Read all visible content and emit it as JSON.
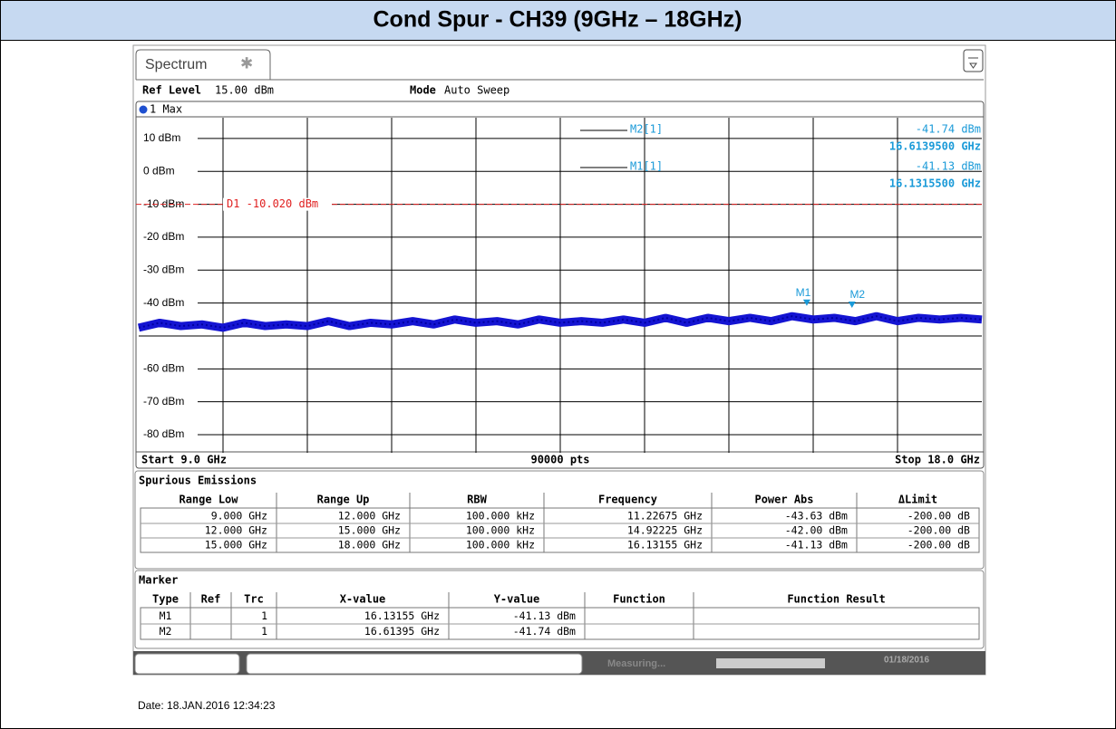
{
  "header": {
    "title": "Cond Spur  - CH39 (9GHz – 18GHz)"
  },
  "tab": "Spectrum",
  "settings": {
    "ref_level_label": "Ref Level",
    "ref_level": "15.00 dBm",
    "mode_label": "Mode",
    "mode": "Auto Sweep",
    "trace_label": "1 Max"
  },
  "chart_data": {
    "type": "line",
    "xlim": [
      9,
      18
    ],
    "x_divisions": 10,
    "ylim": [
      -85.5,
      16.3
    ],
    "yticks": [
      {
        "value": 10,
        "label": "10 dBm"
      },
      {
        "value": 0,
        "label": "0 dBm"
      },
      {
        "value": -10,
        "label": "-10 dBm"
      },
      {
        "value": -20,
        "label": "-20 dBm"
      },
      {
        "value": -30,
        "label": "-30 dBm"
      },
      {
        "value": -40,
        "label": "-40 dBm"
      },
      {
        "value": -50,
        "label": null
      },
      {
        "value": -60,
        "label": "-60 dBm"
      },
      {
        "value": -70,
        "label": "-70 dBm"
      },
      {
        "value": -80,
        "label": "-80 dBm"
      }
    ],
    "grid": true,
    "x": [
      9,
      9.225,
      9.45,
      9.675,
      9.9,
      10.125,
      10.35,
      10.575,
      10.8,
      11.025,
      11.25,
      11.475,
      11.7,
      11.925,
      12.15,
      12.375,
      12.6,
      12.825,
      13.05,
      13.275,
      13.5,
      13.725,
      13.95,
      14.175,
      14.4,
      14.625,
      14.85,
      15.075,
      15.3,
      15.525,
      15.75,
      15.975,
      16.2,
      16.425,
      16.65,
      16.875,
      17.1,
      17.325,
      17.55,
      17.775,
      18
    ],
    "series": [
      {
        "name": "1 Max",
        "color": "#1414d2",
        "values": [
          -47.5,
          -46,
          -47,
          -46.5,
          -47.5,
          -46,
          -47,
          -46.5,
          -47,
          -45.5,
          -47,
          -46,
          -46.5,
          -45.5,
          -46.5,
          -45,
          -46,
          -45.5,
          -46.5,
          -45,
          -46,
          -45.5,
          -46,
          -45,
          -46,
          -44.5,
          -46,
          -44.5,
          -45.5,
          -44.5,
          -45.5,
          -44,
          -45,
          -44.5,
          -45.5,
          -44,
          -45.5,
          -44.5,
          -45,
          -44.5,
          -45
        ]
      }
    ],
    "display_line": {
      "value": -10.02,
      "label": "D1 -10.020 dBm",
      "color": "#e02020"
    },
    "markers": [
      {
        "name": "M1",
        "x": 16.13155,
        "y": -41.13
      },
      {
        "name": "M2",
        "x": 16.61395,
        "y": -41.74
      }
    ],
    "marker_color": "#1a9ad8",
    "readout": [
      {
        "name": "M2[1]",
        "level": "-41.74 dBm",
        "freq": "16.6139500 GHz"
      },
      {
        "name": "M1[1]",
        "level": "-41.13 dBm",
        "freq": "16.1315500 GHz"
      }
    ],
    "start": "Start 9.0 GHz",
    "points": "90000 pts",
    "stop": "Stop 18.0 GHz"
  },
  "spurious": {
    "title": "Spurious Emissions",
    "columns": [
      "Range Low",
      "Range Up",
      "RBW",
      "Frequency",
      "Power Abs",
      "ΔLimit"
    ],
    "rows": [
      [
        "9.000 GHz",
        "12.000 GHz",
        "100.000 kHz",
        "11.22675 GHz",
        "-43.63 dBm",
        "-200.00 dB"
      ],
      [
        "12.000 GHz",
        "15.000 GHz",
        "100.000 kHz",
        "14.92225 GHz",
        "-42.00 dBm",
        "-200.00 dB"
      ],
      [
        "15.000 GHz",
        "18.000 GHz",
        "100.000 kHz",
        "16.13155 GHz",
        "-41.13 dBm",
        "-200.00 dB"
      ]
    ]
  },
  "marker_table": {
    "title": "Marker",
    "columns": [
      "Type",
      "Ref",
      "Trc",
      "X-value",
      "Y-value",
      "Function",
      "Function Result"
    ],
    "rows": [
      [
        "M1",
        null,
        "1",
        "16.13155 GHz",
        "-41.13 dBm",
        null,
        null
      ],
      [
        "M2",
        null,
        "1",
        "16.61395 GHz",
        "-41.74 dBm",
        null,
        null
      ]
    ]
  },
  "status": {
    "state": "Measuring...",
    "date": "01/18/2016"
  },
  "footer": {
    "date": "Date: 18.JAN.2016  12:34:23"
  }
}
